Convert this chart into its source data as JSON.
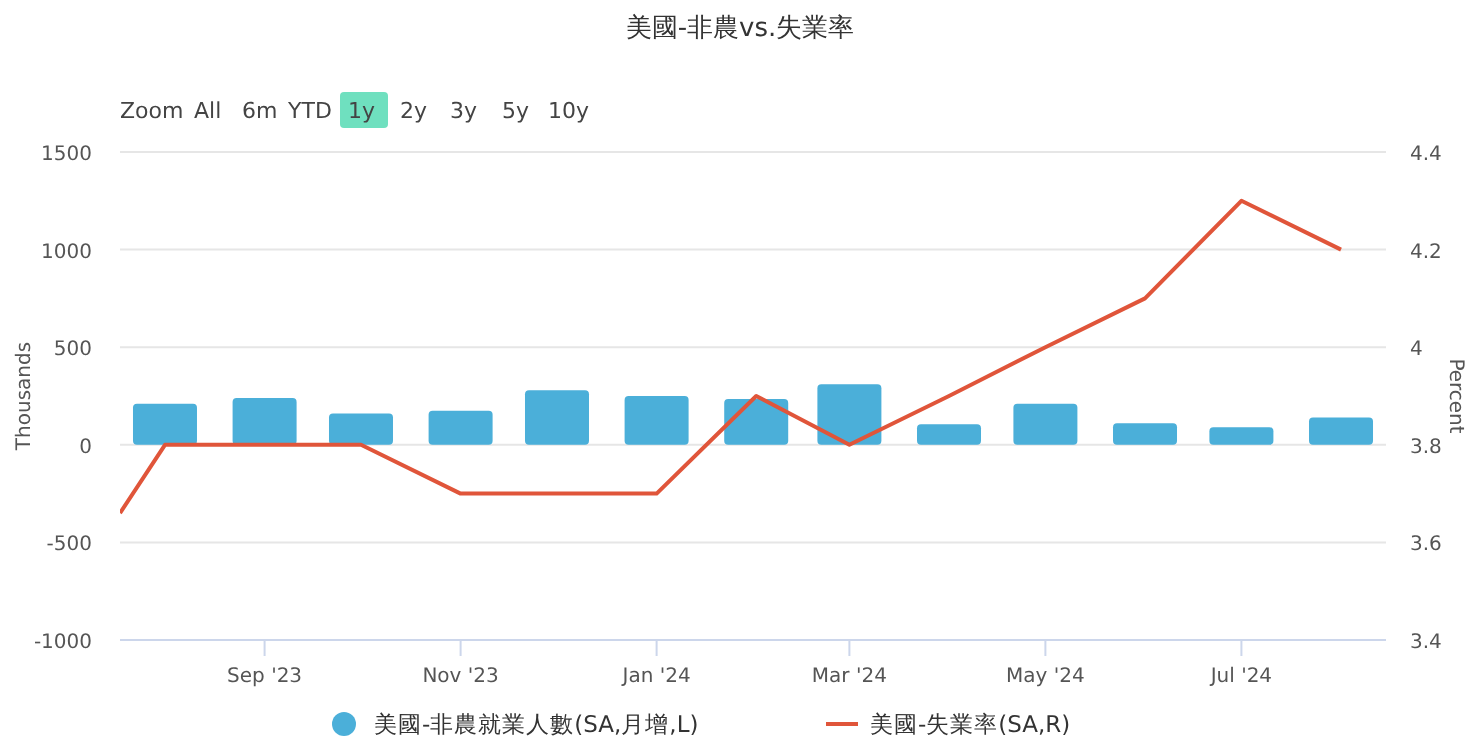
{
  "chart_data": {
    "type": "bar",
    "title": "美國-非農vs.失業率",
    "annotations": [
      "Zoom",
      "All",
      "6m",
      "YTD",
      "1y",
      "2y",
      "3y",
      "5y",
      "10y"
    ],
    "x": [
      "2023-08-01",
      "2023-09-01",
      "2023-10-01",
      "2023-11-01",
      "2023-12-01",
      "2024-01-01",
      "2024-02-01",
      "2024-03-01",
      "2024-04-01",
      "2024-05-01",
      "2024-06-01",
      "2024-07-01",
      "2024-08-01"
    ],
    "xlim": [
      "2023-07-18",
      "2024-08-15"
    ],
    "xticks": [
      {
        "value": "2023-09-01",
        "label": "Sep '23"
      },
      {
        "value": "2023-11-01",
        "label": "Nov '23"
      },
      {
        "value": "2024-01-01",
        "label": "Jan '24"
      },
      {
        "value": "2024-03-01",
        "label": "Mar '24"
      },
      {
        "value": "2024-05-01",
        "label": "May '24"
      },
      {
        "value": "2024-07-01",
        "label": "Jul '24"
      }
    ],
    "ylabel": "Thousands",
    "y2label": "Percent",
    "ylim": [
      -1000,
      1500
    ],
    "yticks": [
      -1000,
      -500,
      0,
      500,
      1000,
      1500
    ],
    "y2lim": [
      3.4,
      4.4
    ],
    "y2ticks": [
      3.4,
      3.6,
      3.8,
      4,
      4.2,
      4.4
    ],
    "grid": "y",
    "legend": "bottom",
    "series": [
      {
        "name": "美國-非農就業人數(SA,月增,L)",
        "color": "#4bafd9",
        "values": [
          210,
          240,
          160,
          175,
          280,
          250,
          235,
          310,
          105,
          210,
          110,
          90,
          140
        ]
      },
      {
        "name": "美國-失業率(SA,R)",
        "type": "line",
        "axis": "y2",
        "color": "#e0553a",
        "x": [
          "2023-07-18",
          "2023-08-01",
          "2023-09-01",
          "2023-10-01",
          "2023-11-01",
          "2023-12-01",
          "2024-01-01",
          "2024-02-01",
          "2024-03-01",
          "2024-04-01",
          "2024-05-01",
          "2024-06-01",
          "2024-07-01",
          "2024-08-01"
        ],
        "values": [
          3.66,
          3.8,
          3.8,
          3.8,
          3.7,
          3.7,
          3.7,
          3.9,
          3.8,
          3.9,
          4.0,
          4.1,
          4.3,
          4.2
        ]
      }
    ]
  }
}
